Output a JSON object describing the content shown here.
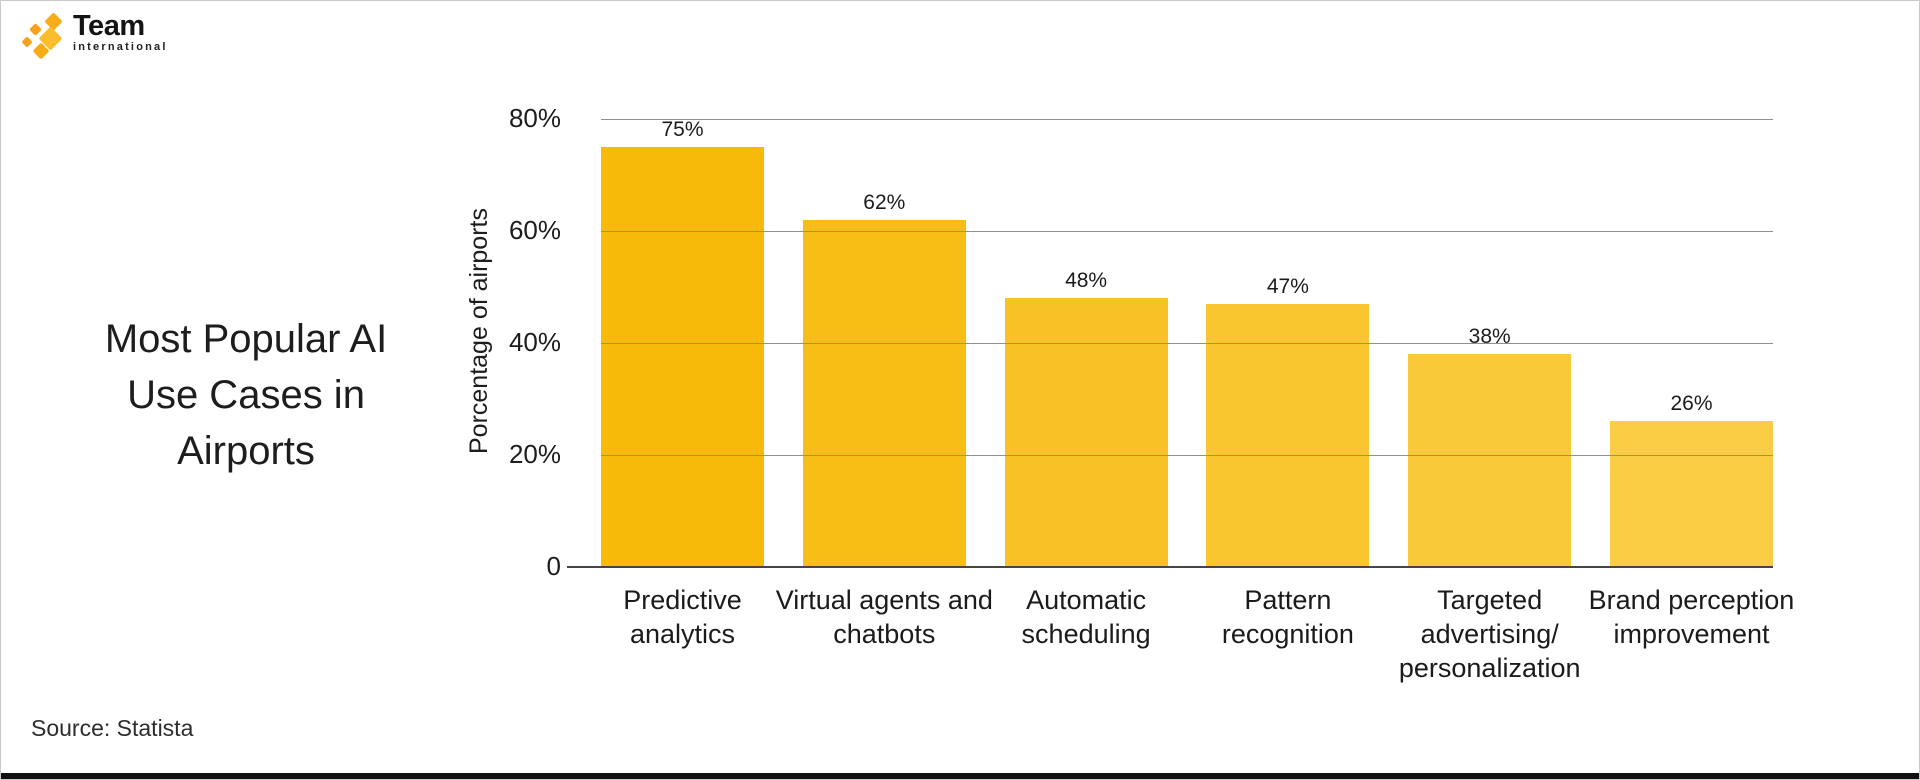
{
  "logo": {
    "brand": "Team",
    "subbrand": "international",
    "accent_colors": [
      "#F6A21C",
      "#F8AC18",
      "#FBBD2C"
    ]
  },
  "source": {
    "text": "Source: Statista"
  },
  "chart_data": {
    "type": "bar",
    "title": "Most Popular AI Use Cases in Airports",
    "xlabel": "",
    "ylabel": "Porcentage of airports",
    "ylim": [
      0,
      80
    ],
    "grid": true,
    "legend": false,
    "yticks": [
      {
        "value": 80,
        "label": "80%"
      },
      {
        "value": 60,
        "label": "60%"
      },
      {
        "value": 40,
        "label": "40%"
      },
      {
        "value": 20,
        "label": "20%"
      },
      {
        "value": 0,
        "label": "0"
      }
    ],
    "categories": [
      "Predictive analytics",
      "Virtual agents and chatbots",
      "Automatic scheduling",
      "Pattern recognition",
      "Targeted advertising/ personalization",
      "Brand perception improvement"
    ],
    "values": [
      75,
      62,
      48,
      47,
      38,
      26
    ],
    "value_labels": [
      "75%",
      "62%",
      "48%",
      "47%",
      "38%",
      "26%"
    ],
    "bar_colors": [
      "#F7BA09",
      "#F8BE16",
      "#F8C224",
      "#F9C630",
      "#F9C93A",
      "#FACD45"
    ],
    "gridline_color": "#909090",
    "baseline_color": "#454545"
  }
}
